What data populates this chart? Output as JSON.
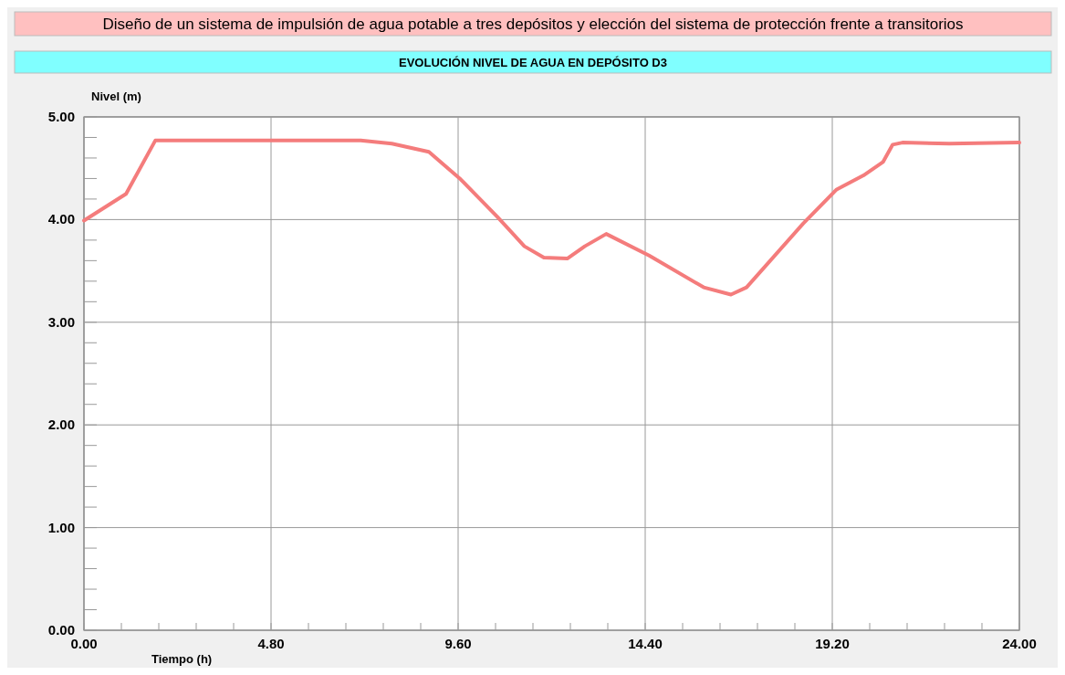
{
  "chart_data": {
    "type": "line",
    "title": "Diseño de un sistema de impulsión de agua potable a tres depósitos y elección del sistema de protección frente a transitorios",
    "subtitle": "EVOLUCIÓN NIVEL DE AGUA EN DEPÓSITO D3",
    "xlabel": "Tiempo  (h)",
    "ylabel": "Nivel (m)",
    "x": [
      0,
      1.08,
      1.83,
      4.8,
      7.1,
      7.9,
      8.85,
      9.67,
      10.6,
      11.3,
      11.8,
      12.4,
      12.85,
      13.4,
      14.5,
      15.9,
      16.6,
      17.0,
      18.45,
      19.3,
      20.0,
      20.5,
      20.75,
      21.0,
      22.2,
      24
    ],
    "series": [
      {
        "color": "#f47c7c",
        "values": [
          3.99,
          4.25,
          4.77,
          4.77,
          4.77,
          4.74,
          4.66,
          4.39,
          4.03,
          3.74,
          3.63,
          3.62,
          3.74,
          3.86,
          3.65,
          3.34,
          3.27,
          3.34,
          3.96,
          4.29,
          4.43,
          4.56,
          4.73,
          4.75,
          4.74,
          4.75
        ]
      }
    ],
    "xlim": [
      0,
      24
    ],
    "ylim": [
      0,
      5
    ],
    "xticks": [
      {
        "value": 0,
        "label": "0.00"
      },
      {
        "value": 0.96,
        "label": null
      },
      {
        "value": 1.92,
        "label": null
      },
      {
        "value": 2.88,
        "label": null
      },
      {
        "value": 3.84,
        "label": null
      },
      {
        "value": 4.8,
        "label": "4.80"
      },
      {
        "value": 5.76,
        "label": null
      },
      {
        "value": 6.72,
        "label": null
      },
      {
        "value": 7.68,
        "label": null
      },
      {
        "value": 8.64,
        "label": null
      },
      {
        "value": 9.6,
        "label": "9.60"
      },
      {
        "value": 10.56,
        "label": null
      },
      {
        "value": 11.52,
        "label": null
      },
      {
        "value": 12.48,
        "label": null
      },
      {
        "value": 13.44,
        "label": null
      },
      {
        "value": 14.4,
        "label": "14.40"
      },
      {
        "value": 15.36,
        "label": null
      },
      {
        "value": 16.32,
        "label": null
      },
      {
        "value": 17.28,
        "label": null
      },
      {
        "value": 18.24,
        "label": null
      },
      {
        "value": 19.2,
        "label": "19.20"
      },
      {
        "value": 20.16,
        "label": null
      },
      {
        "value": 21.12,
        "label": null
      },
      {
        "value": 22.08,
        "label": null
      },
      {
        "value": 23.04,
        "label": null
      },
      {
        "value": 24,
        "label": "24.00"
      }
    ],
    "yticks": [
      {
        "value": 0,
        "label": "0.00"
      },
      {
        "value": 0.2,
        "label": null
      },
      {
        "value": 0.4,
        "label": null
      },
      {
        "value": 0.6,
        "label": null
      },
      {
        "value": 0.8,
        "label": null
      },
      {
        "value": 1,
        "label": "1.00"
      },
      {
        "value": 1.2,
        "label": null
      },
      {
        "value": 1.4,
        "label": null
      },
      {
        "value": 1.6,
        "label": null
      },
      {
        "value": 1.8,
        "label": null
      },
      {
        "value": 2,
        "label": "2.00"
      },
      {
        "value": 2.2,
        "label": null
      },
      {
        "value": 2.4,
        "label": null
      },
      {
        "value": 2.6,
        "label": null
      },
      {
        "value": 2.8,
        "label": null
      },
      {
        "value": 3,
        "label": "3.00"
      },
      {
        "value": 3.2,
        "label": null
      },
      {
        "value": 3.4,
        "label": null
      },
      {
        "value": 3.6,
        "label": null
      },
      {
        "value": 3.8,
        "label": null
      },
      {
        "value": 4,
        "label": "4.00"
      },
      {
        "value": 4.2,
        "label": null
      },
      {
        "value": 4.4,
        "label": null
      },
      {
        "value": 4.6,
        "label": null
      },
      {
        "value": 4.8,
        "label": null
      },
      {
        "value": 5,
        "label": "5.00"
      }
    ],
    "grid": true,
    "marker": "none",
    "line_style": "solid"
  }
}
